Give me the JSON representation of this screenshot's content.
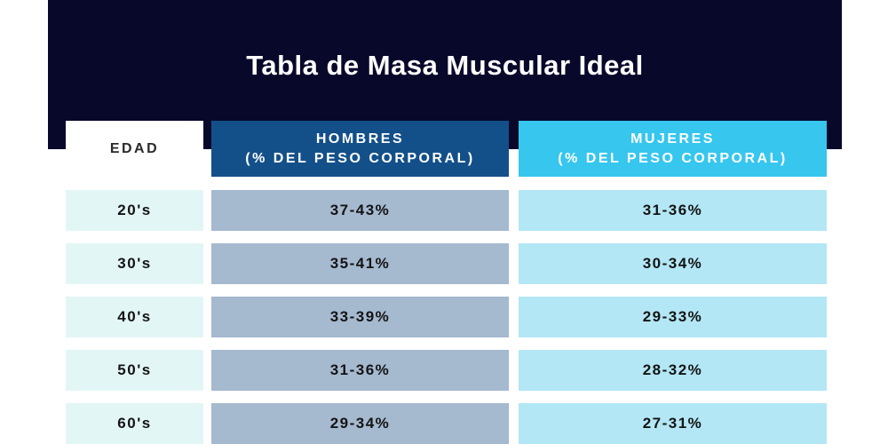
{
  "title": "Tabla de Masa Muscular Ideal",
  "headers": {
    "edad": "EDAD",
    "hombres_line1": "HOMBRES",
    "hombres_line2": "(% DEL PESO CORPORAL)",
    "mujeres_line1": "MUJERES",
    "mujeres_line2": "(% DEL PESO CORPORAL)"
  },
  "rows": [
    {
      "edad": "20's",
      "hombres": "37-43%",
      "mujeres": "31-36%"
    },
    {
      "edad": "30's",
      "hombres": "35-41%",
      "mujeres": "30-34%"
    },
    {
      "edad": "40's",
      "hombres": "33-39%",
      "mujeres": "29-33%"
    },
    {
      "edad": "50's",
      "hombres": "31-36%",
      "mujeres": "28-32%"
    },
    {
      "edad": "60's",
      "hombres": "29-34%",
      "mujeres": "27-31%"
    }
  ],
  "colors": {
    "banner": "#08082b",
    "hombres_header": "#13508a",
    "mujeres_header": "#36c6ee",
    "edad_cell": "#e3f6f6",
    "hombres_cell": "#a5b9cf",
    "mujeres_cell": "#b3e7f5"
  }
}
